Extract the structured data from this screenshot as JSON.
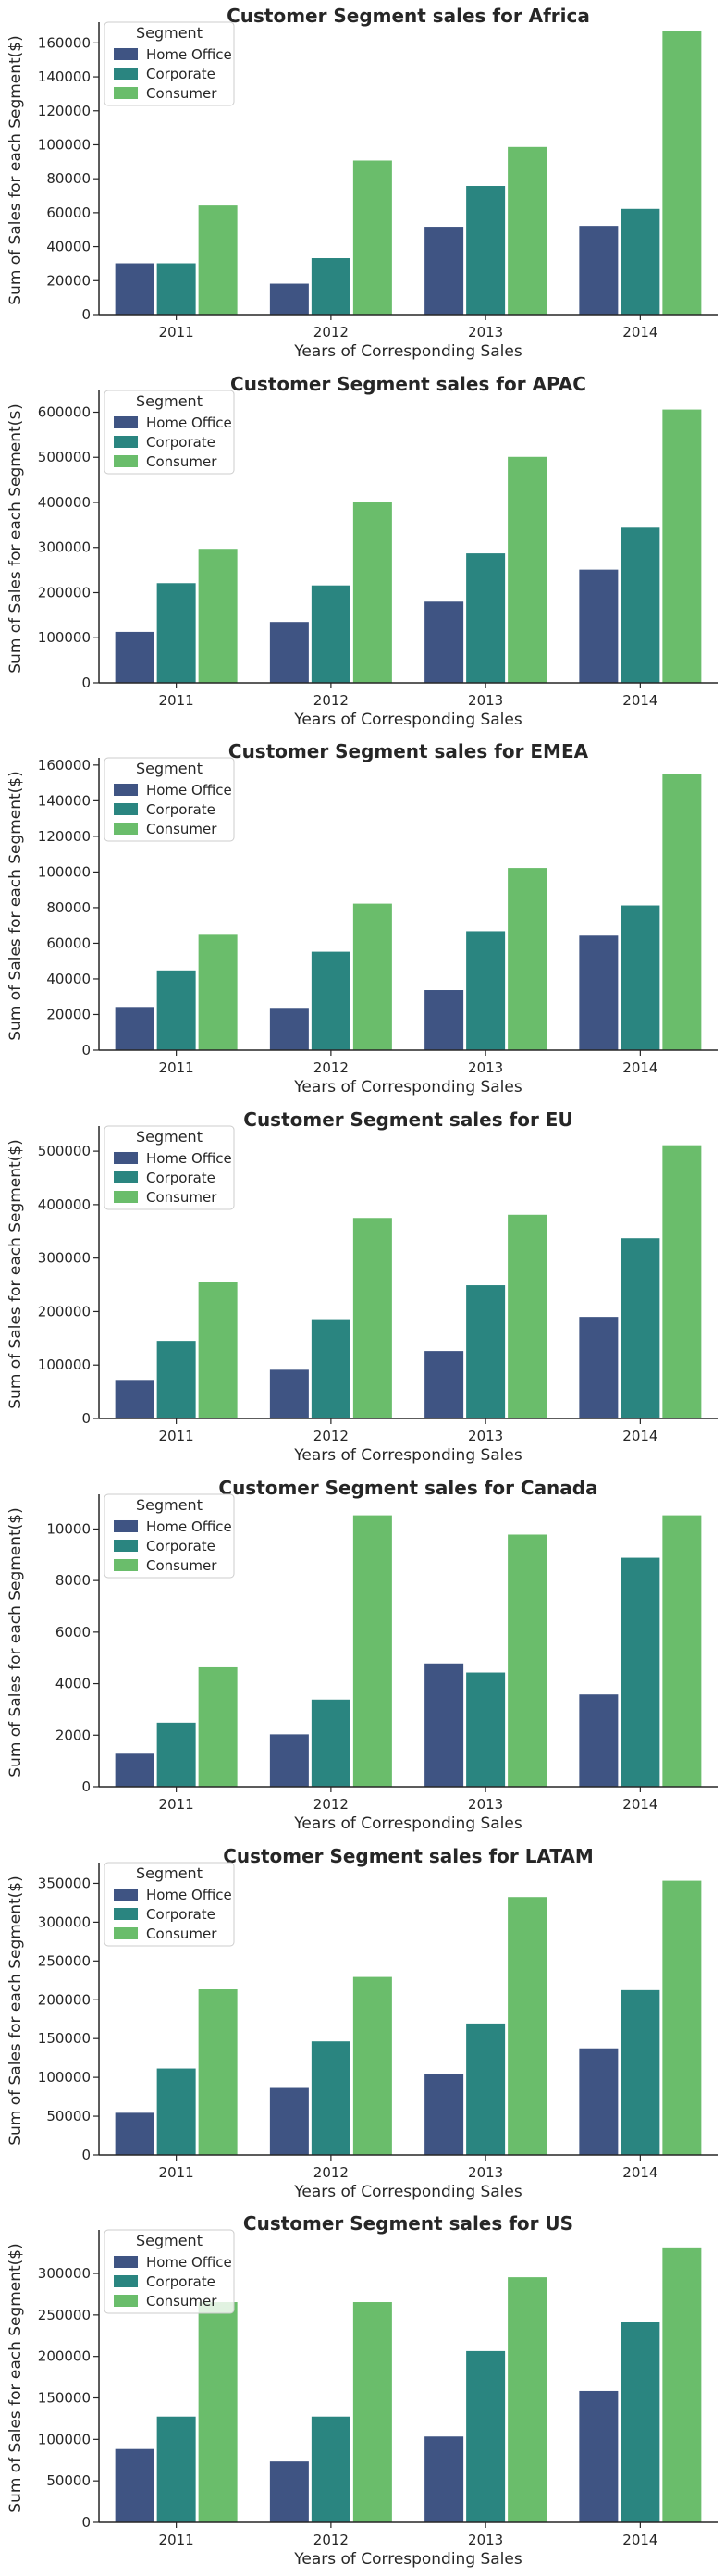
{
  "legend": {
    "title": "Segment",
    "entries": [
      "Home Office",
      "Corporate",
      "Consumer"
    ]
  },
  "colors": {
    "Home Office": "#3f5483",
    "Corporate": "#2a8580",
    "Consumer": "#6abd6b",
    "axis": "#262626"
  },
  "chart_data": [
    {
      "type": "bar",
      "title": "Customer Segment sales for Africa",
      "xlabel": "Years of Corresponding Sales",
      "ylabel": "Sum of Sales for each Segment($)",
      "categories": [
        "2011",
        "2012",
        "2013",
        "2014"
      ],
      "series": [
        {
          "name": "Home Office",
          "values": [
            30500,
            18500,
            52000,
            52500
          ]
        },
        {
          "name": "Corporate",
          "values": [
            30500,
            33500,
            76000,
            62500
          ]
        },
        {
          "name": "Consumer",
          "values": [
            64500,
            91000,
            99000,
            167000
          ]
        }
      ],
      "ylim": [
        0,
        170000
      ],
      "yticks": [
        0,
        20000,
        40000,
        60000,
        80000,
        100000,
        120000,
        140000,
        160000
      ],
      "legend_position": "top-left",
      "grid": false
    },
    {
      "type": "bar",
      "title": "Customer Segment sales for APAC",
      "xlabel": "Years of Corresponding Sales",
      "ylabel": "Sum of Sales for each Segment($)",
      "categories": [
        "2011",
        "2012",
        "2013",
        "2014"
      ],
      "series": [
        {
          "name": "Home Office",
          "values": [
            114000,
            136000,
            181000,
            252000
          ]
        },
        {
          "name": "Corporate",
          "values": [
            222000,
            217000,
            288000,
            345000
          ]
        },
        {
          "name": "Consumer",
          "values": [
            298000,
            401000,
            502000,
            607000
          ]
        }
      ],
      "ylim": [
        0,
        640000
      ],
      "yticks": [
        0,
        100000,
        200000,
        300000,
        400000,
        500000,
        600000
      ],
      "legend_position": "top-left",
      "grid": false
    },
    {
      "type": "bar",
      "title": "Customer Segment sales for EMEA",
      "xlabel": "Years of Corresponding Sales",
      "ylabel": "Sum of Sales for each Segment($)",
      "categories": [
        "2011",
        "2012",
        "2013",
        "2014"
      ],
      "series": [
        {
          "name": "Home Office",
          "values": [
            24500,
            24000,
            34000,
            64500
          ]
        },
        {
          "name": "Corporate",
          "values": [
            45000,
            55500,
            67000,
            81500
          ]
        },
        {
          "name": "Consumer",
          "values": [
            65500,
            82500,
            102500,
            155500
          ]
        }
      ],
      "ylim": [
        0,
        162000
      ],
      "yticks": [
        0,
        20000,
        40000,
        60000,
        80000,
        100000,
        120000,
        140000,
        160000
      ],
      "legend_position": "top-left",
      "grid": false
    },
    {
      "type": "bar",
      "title": "Customer Segment sales for EU",
      "xlabel": "Years of Corresponding Sales",
      "ylabel": "Sum of Sales for each Segment($)",
      "categories": [
        "2011",
        "2012",
        "2013",
        "2014"
      ],
      "series": [
        {
          "name": "Home Office",
          "values": [
            73000,
            92000,
            127000,
            191000
          ]
        },
        {
          "name": "Corporate",
          "values": [
            146000,
            185000,
            250000,
            338000
          ]
        },
        {
          "name": "Consumer",
          "values": [
            256000,
            376000,
            382000,
            512000
          ]
        }
      ],
      "ylim": [
        0,
        540000
      ],
      "yticks": [
        0,
        100000,
        200000,
        300000,
        400000,
        500000
      ],
      "legend_position": "top-left",
      "grid": false
    },
    {
      "type": "bar",
      "title": "Customer Segment sales for Canada",
      "xlabel": "Years of Corresponding Sales",
      "ylabel": "Sum of Sales for each Segment($)",
      "categories": [
        "2011",
        "2012",
        "2013",
        "2014"
      ],
      "series": [
        {
          "name": "Home Office",
          "values": [
            1300,
            2050,
            4800,
            3600
          ]
        },
        {
          "name": "Corporate",
          "values": [
            2500,
            3400,
            4450,
            8900
          ]
        },
        {
          "name": "Consumer",
          "values": [
            4650,
            10550,
            9800,
            10550
          ]
        }
      ],
      "ylim": [
        0,
        11200
      ],
      "yticks": [
        0,
        2000,
        4000,
        6000,
        8000,
        10000
      ],
      "legend_position": "top-left",
      "grid": false
    },
    {
      "type": "bar",
      "title": "Customer Segment sales for LATAM",
      "xlabel": "Years of Corresponding Sales",
      "ylabel": "Sum of Sales for each Segment($)",
      "categories": [
        "2011",
        "2012",
        "2013",
        "2014"
      ],
      "series": [
        {
          "name": "Home Office",
          "values": [
            55000,
            87000,
            105000,
            138000
          ]
        },
        {
          "name": "Corporate",
          "values": [
            112000,
            147000,
            170000,
            213000
          ]
        },
        {
          "name": "Consumer",
          "values": [
            214000,
            230000,
            333000,
            354000
          ]
        }
      ],
      "ylim": [
        0,
        372000
      ],
      "yticks": [
        0,
        50000,
        100000,
        150000,
        200000,
        250000,
        300000,
        350000
      ],
      "legend_position": "top-left",
      "grid": false
    },
    {
      "type": "bar",
      "title": "Customer Segment sales for US",
      "xlabel": "Years of Corresponding Sales",
      "ylabel": "Sum of Sales for each Segment($)",
      "categories": [
        "2011",
        "2012",
        "2013",
        "2014"
      ],
      "series": [
        {
          "name": "Home Office",
          "values": [
            89000,
            74000,
            104000,
            159000
          ]
        },
        {
          "name": "Corporate",
          "values": [
            128000,
            128000,
            207000,
            242000
          ]
        },
        {
          "name": "Consumer",
          "values": [
            266000,
            266000,
            296000,
            332000
          ]
        }
      ],
      "ylim": [
        0,
        348000
      ],
      "yticks": [
        0,
        50000,
        100000,
        150000,
        200000,
        250000,
        300000
      ],
      "legend_position": "top-left",
      "grid": false
    }
  ]
}
